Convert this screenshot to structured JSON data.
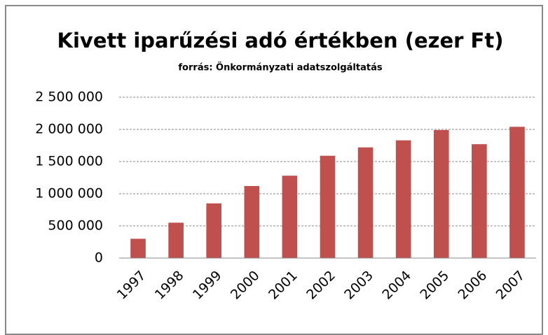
{
  "chart_data": {
    "type": "bar",
    "title": "Kivett iparűzési adó értékben (ezer Ft)",
    "subtitle": "forrás: Önkormányzati adatszolgáltatás",
    "categories": [
      "1997",
      "1998",
      "1999",
      "2000",
      "2001",
      "2002",
      "2003",
      "2004",
      "2005",
      "2006",
      "2007"
    ],
    "values": [
      300000,
      550000,
      850000,
      1120000,
      1280000,
      1590000,
      1720000,
      1830000,
      1990000,
      1770000,
      2040000
    ],
    "color": "#c0504d",
    "ylim": [
      0,
      2500000
    ],
    "yticks": [
      0,
      {
        "value": 500000,
        "label": "500 000"
      },
      {
        "value": 1000000,
        "label": "1 000 000"
      },
      {
        "value": 1500000,
        "label": "1 500 000"
      },
      {
        "value": 2000000,
        "label": "2 000 000"
      },
      {
        "value": 2500000,
        "label": "2 500 000"
      }
    ],
    "grid": true
  }
}
